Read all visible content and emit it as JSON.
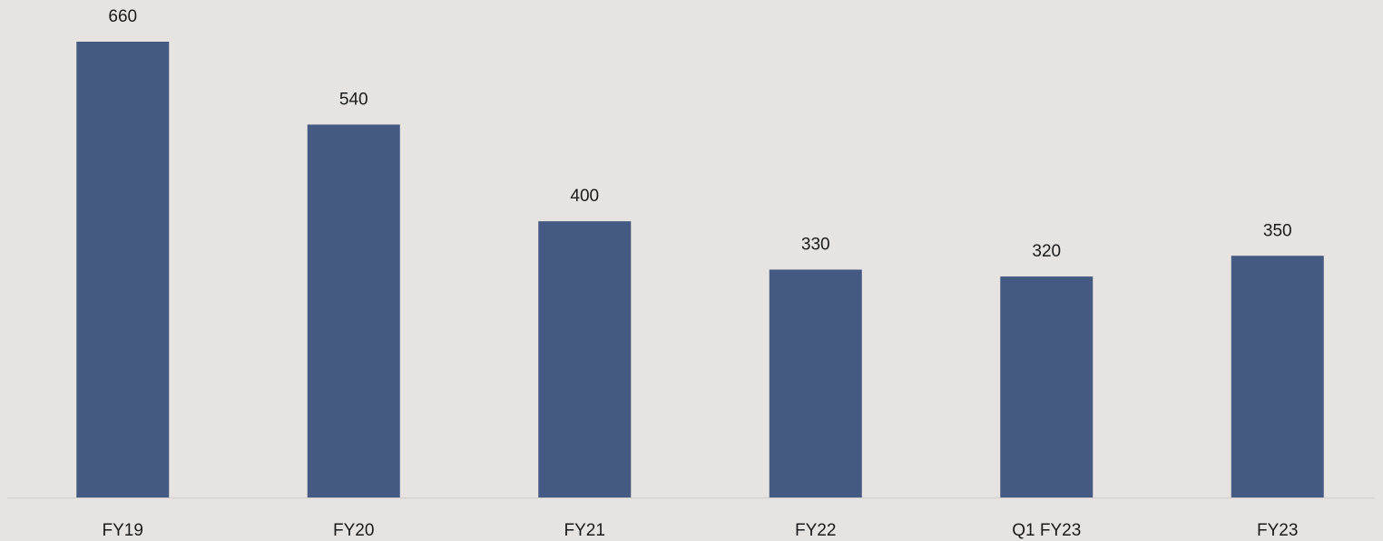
{
  "chart_data": {
    "type": "bar",
    "categories": [
      "FY19",
      "FY20",
      "FY21",
      "FY22",
      "Q1 FY23",
      "FY23"
    ],
    "values": [
      660,
      540,
      400,
      330,
      320,
      350
    ],
    "color": "#455a82"
  }
}
